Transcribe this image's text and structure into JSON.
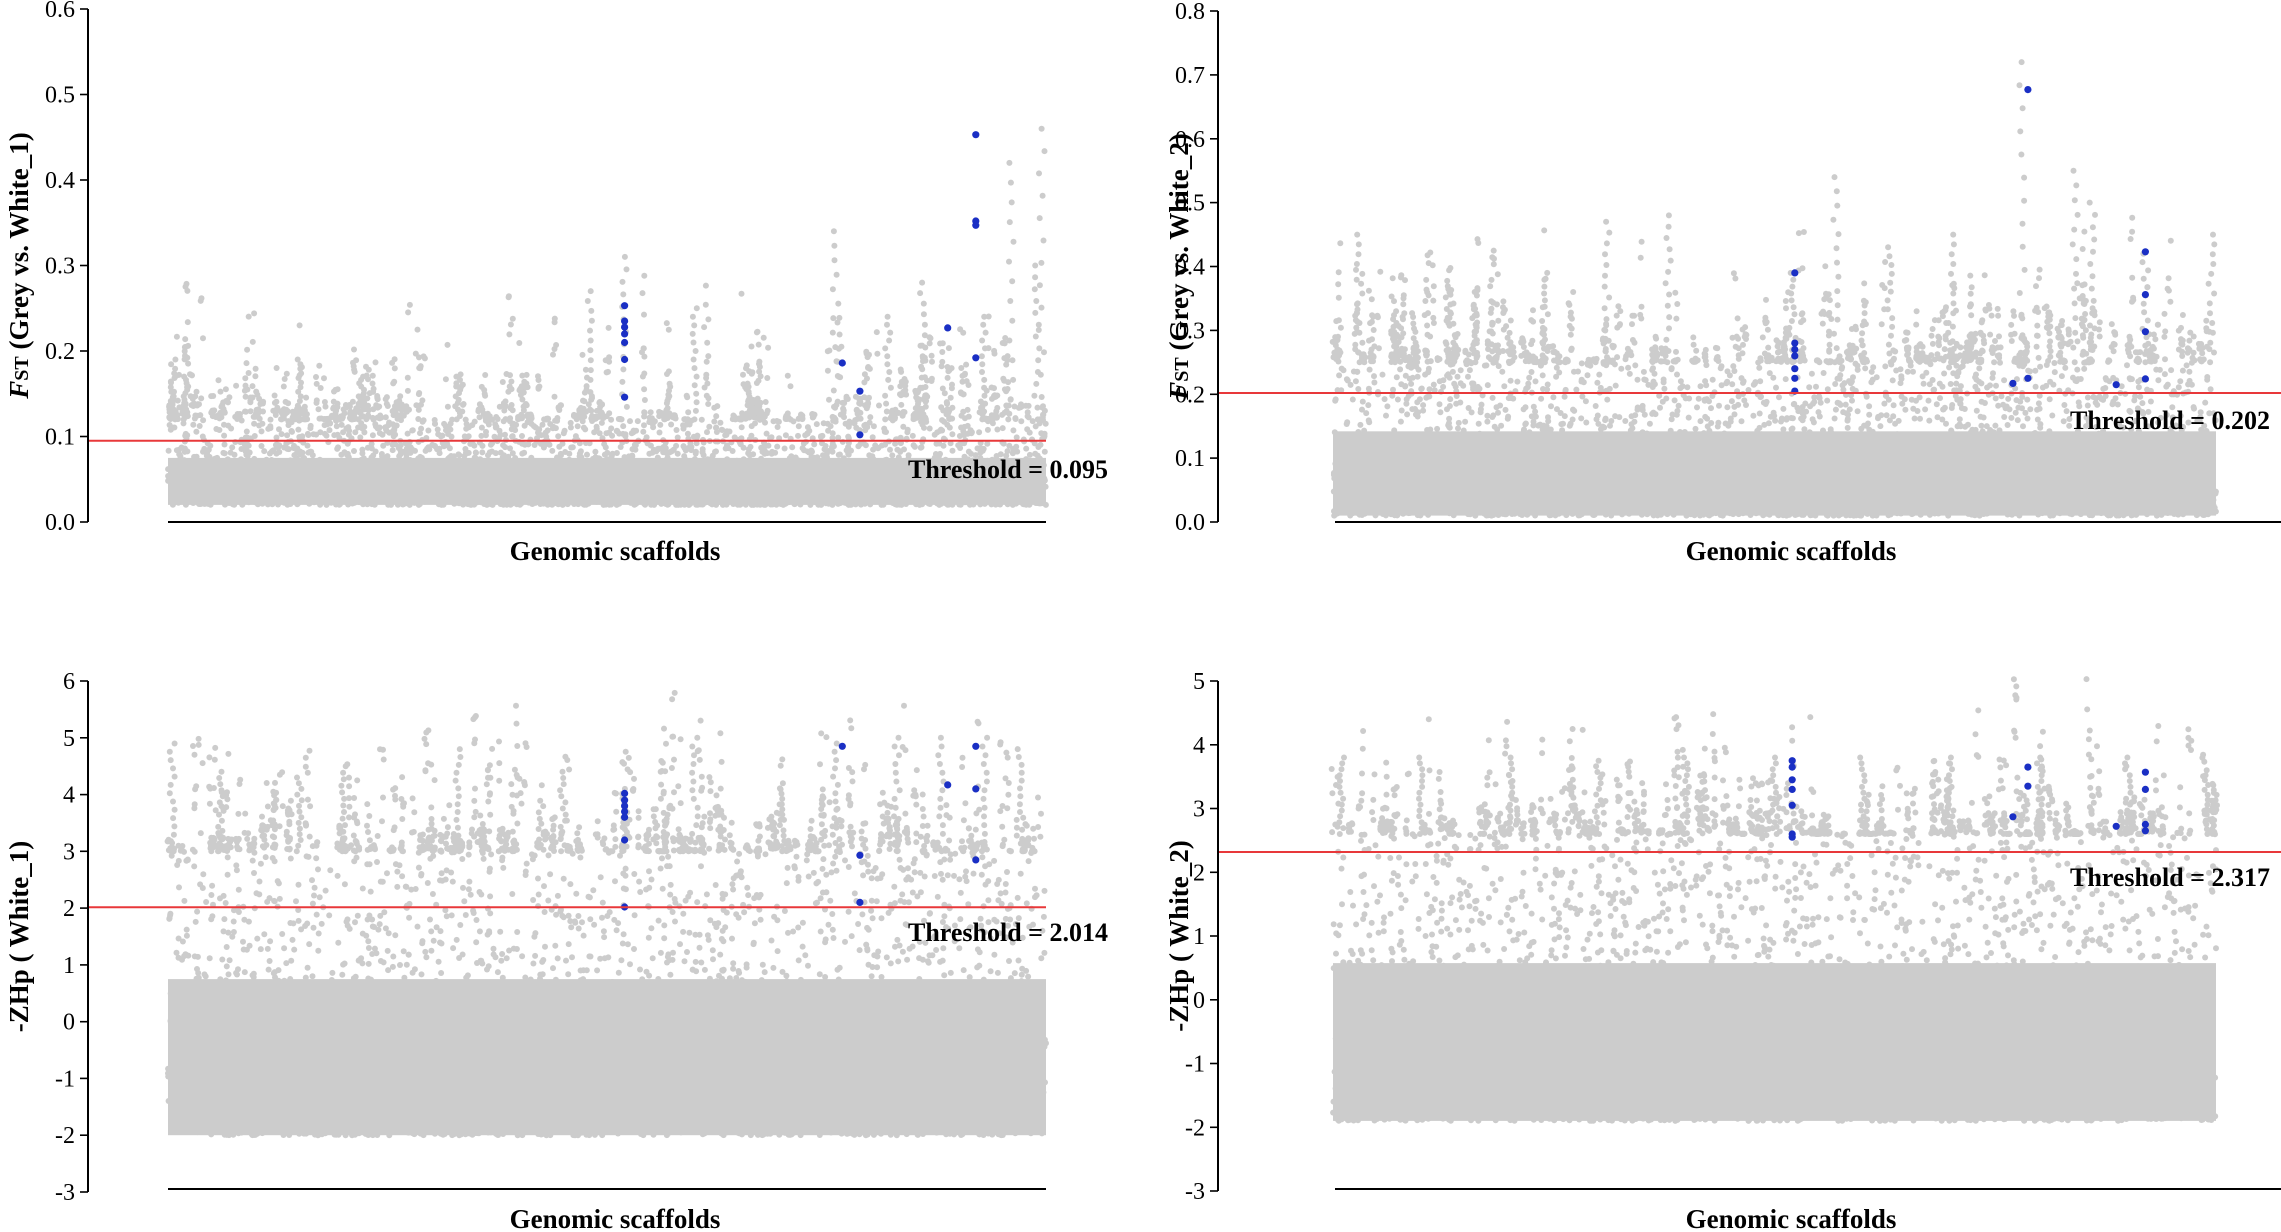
{
  "colors": {
    "background_points": "#cccccc",
    "significant_points": "#1a2fc4",
    "threshold_line": "#e8383a",
    "axis": "#000000"
  },
  "chart_data": [
    {
      "id": "fst-white1",
      "type": "scatter",
      "subtype": "manhattan",
      "ylabel_prefix": "F",
      "ylabel_sub": "ST",
      "ylabel_rest": " (Grey vs. White_1)",
      "xlabel": "Genomic scaffolds",
      "ylim": [
        0.0,
        0.6
      ],
      "yticks": [
        0.0,
        0.1,
        0.2,
        0.3,
        0.4,
        0.5,
        0.6
      ],
      "ytick_labels": [
        "0.0",
        "0.1",
        "0.2",
        "0.3",
        "0.4",
        "0.5",
        "0.6"
      ],
      "threshold": 0.095,
      "threshold_label": "Threshold = 0.095",
      "background_band": [
        0.02,
        0.12
      ],
      "peaks": [
        {
          "x": 0.005,
          "y": 0.19
        },
        {
          "x": 0.02,
          "y": 0.17
        },
        {
          "x": 0.15,
          "y": 0.19
        },
        {
          "x": 0.22,
          "y": 0.17
        },
        {
          "x": 0.33,
          "y": 0.17
        },
        {
          "x": 0.48,
          "y": 0.27
        },
        {
          "x": 0.52,
          "y": 0.31
        },
        {
          "x": 0.6,
          "y": 0.25
        },
        {
          "x": 0.76,
          "y": 0.34
        },
        {
          "x": 0.82,
          "y": 0.24
        },
        {
          "x": 0.86,
          "y": 0.28
        },
        {
          "x": 0.93,
          "y": 0.24
        },
        {
          "x": 0.96,
          "y": 0.42
        },
        {
          "x": 0.995,
          "y": 0.46
        },
        {
          "x": 0.99,
          "y": 0.3
        }
      ],
      "significant": [
        {
          "x": 0.52,
          "y": 0.253
        },
        {
          "x": 0.52,
          "y": 0.235
        },
        {
          "x": 0.52,
          "y": 0.228
        },
        {
          "x": 0.52,
          "y": 0.22
        },
        {
          "x": 0.52,
          "y": 0.21
        },
        {
          "x": 0.52,
          "y": 0.19
        },
        {
          "x": 0.52,
          "y": 0.146
        },
        {
          "x": 0.768,
          "y": 0.186
        },
        {
          "x": 0.788,
          "y": 0.153
        },
        {
          "x": 0.788,
          "y": 0.102
        },
        {
          "x": 0.888,
          "y": 0.227
        },
        {
          "x": 0.92,
          "y": 0.453
        },
        {
          "x": 0.92,
          "y": 0.352
        },
        {
          "x": 0.92,
          "y": 0.347
        },
        {
          "x": 0.92,
          "y": 0.192
        }
      ]
    },
    {
      "id": "fst-white2",
      "type": "scatter",
      "subtype": "manhattan",
      "ylabel_prefix": "F",
      "ylabel_sub": "ST",
      "ylabel_rest": " (Grey vs. White_2)",
      "xlabel": "Genomic scaffolds",
      "ylim": [
        0.0,
        0.8
      ],
      "yticks": [
        0.0,
        0.1,
        0.2,
        0.3,
        0.4,
        0.5,
        0.6,
        0.7,
        0.8
      ],
      "ytick_labels": [
        "0.0",
        "0.1",
        "0.2",
        "0.3",
        "0.4",
        "0.5",
        "0.6",
        "0.7",
        "0.8"
      ],
      "threshold": 0.202,
      "threshold_label": "Threshold = 0.202",
      "background_band": [
        0.01,
        0.25
      ],
      "peaks": [
        {
          "x": 0.03,
          "y": 0.45
        },
        {
          "x": 0.07,
          "y": 0.33
        },
        {
          "x": 0.16,
          "y": 0.34
        },
        {
          "x": 0.24,
          "y": 0.39
        },
        {
          "x": 0.31,
          "y": 0.47
        },
        {
          "x": 0.38,
          "y": 0.48
        },
        {
          "x": 0.52,
          "y": 0.39
        },
        {
          "x": 0.57,
          "y": 0.54
        },
        {
          "x": 0.63,
          "y": 0.43
        },
        {
          "x": 0.7,
          "y": 0.45
        },
        {
          "x": 0.78,
          "y": 0.72
        },
        {
          "x": 0.84,
          "y": 0.55
        },
        {
          "x": 0.86,
          "y": 0.5
        },
        {
          "x": 0.92,
          "y": 0.42
        },
        {
          "x": 0.995,
          "y": 0.45
        }
      ],
      "significant": [
        {
          "x": 0.523,
          "y": 0.39
        },
        {
          "x": 0.523,
          "y": 0.28
        },
        {
          "x": 0.523,
          "y": 0.27
        },
        {
          "x": 0.523,
          "y": 0.26
        },
        {
          "x": 0.523,
          "y": 0.24
        },
        {
          "x": 0.523,
          "y": 0.225
        },
        {
          "x": 0.523,
          "y": 0.205
        },
        {
          "x": 0.77,
          "y": 0.217
        },
        {
          "x": 0.787,
          "y": 0.677
        },
        {
          "x": 0.787,
          "y": 0.225
        },
        {
          "x": 0.887,
          "y": 0.215
        },
        {
          "x": 0.92,
          "y": 0.423
        },
        {
          "x": 0.92,
          "y": 0.356
        },
        {
          "x": 0.92,
          "y": 0.298
        },
        {
          "x": 0.92,
          "y": 0.224
        }
      ]
    },
    {
      "id": "zhp-white1",
      "type": "scatter",
      "subtype": "manhattan",
      "ylabel_prefix": "-ZHp ( White_1)",
      "ylabel_sub": "",
      "ylabel_rest": "",
      "xlabel": "Genomic scaffolds",
      "ylim": [
        -3,
        6
      ],
      "yticks": [
        -3,
        -2,
        -1,
        0,
        1,
        2,
        3,
        4,
        5,
        6
      ],
      "ytick_labels": [
        "-3",
        "-2",
        "-1",
        "0",
        "1",
        "2",
        "3",
        "4",
        "5",
        "6"
      ],
      "threshold": 2.014,
      "threshold_label": "Threshold = 2.014",
      "background_band": [
        -2.0,
        3.0
      ],
      "peaks": [
        {
          "x": 0.005,
          "y": 4.9
        },
        {
          "x": 0.06,
          "y": 4.4
        },
        {
          "x": 0.15,
          "y": 4.3
        },
        {
          "x": 0.2,
          "y": 4.5
        },
        {
          "x": 0.33,
          "y": 4.8
        },
        {
          "x": 0.45,
          "y": 4.4
        },
        {
          "x": 0.52,
          "y": 4.1
        },
        {
          "x": 0.6,
          "y": 5.0
        },
        {
          "x": 0.7,
          "y": 4.2
        },
        {
          "x": 0.76,
          "y": 4.9
        },
        {
          "x": 0.83,
          "y": 5.0
        },
        {
          "x": 0.88,
          "y": 5.0
        },
        {
          "x": 0.93,
          "y": 5.0
        },
        {
          "x": 0.97,
          "y": 4.8
        }
      ],
      "significant": [
        {
          "x": 0.52,
          "y": 4.02
        },
        {
          "x": 0.52,
          "y": 3.9
        },
        {
          "x": 0.52,
          "y": 3.8
        },
        {
          "x": 0.52,
          "y": 3.7
        },
        {
          "x": 0.52,
          "y": 3.6
        },
        {
          "x": 0.52,
          "y": 3.2
        },
        {
          "x": 0.52,
          "y": 2.02
        },
        {
          "x": 0.768,
          "y": 4.85
        },
        {
          "x": 0.788,
          "y": 2.93
        },
        {
          "x": 0.788,
          "y": 2.1
        },
        {
          "x": 0.888,
          "y": 4.17
        },
        {
          "x": 0.92,
          "y": 4.85
        },
        {
          "x": 0.92,
          "y": 4.1
        },
        {
          "x": 0.92,
          "y": 2.85
        }
      ]
    },
    {
      "id": "zhp-white2",
      "type": "scatter",
      "subtype": "manhattan",
      "ylabel_prefix": "-ZHp ( White_2)",
      "ylabel_sub": "",
      "ylabel_rest": "",
      "xlabel": "Genomic scaffolds",
      "ylim": [
        -3,
        5
      ],
      "yticks": [
        -3,
        -2,
        -1,
        0,
        1,
        2,
        3,
        4,
        5
      ],
      "ytick_labels": [
        "-3",
        "-2",
        "-1",
        "0",
        "1",
        "2",
        "3",
        "4",
        "5"
      ],
      "threshold": 2.317,
      "threshold_label": "Threshold = 2.317",
      "background_band": [
        -1.9,
        2.6
      ],
      "peaks": [
        {
          "x": 0.01,
          "y": 3.8
        },
        {
          "x": 0.1,
          "y": 3.8
        },
        {
          "x": 0.2,
          "y": 3.8
        },
        {
          "x": 0.3,
          "y": 3.75
        },
        {
          "x": 0.4,
          "y": 3.8
        },
        {
          "x": 0.5,
          "y": 3.8
        },
        {
          "x": 0.6,
          "y": 3.8
        },
        {
          "x": 0.7,
          "y": 3.8
        },
        {
          "x": 0.8,
          "y": 3.8
        },
        {
          "x": 0.9,
          "y": 3.8
        },
        {
          "x": 0.99,
          "y": 3.6
        }
      ],
      "significant": [
        {
          "x": 0.52,
          "y": 3.75
        },
        {
          "x": 0.52,
          "y": 3.65
        },
        {
          "x": 0.52,
          "y": 3.45
        },
        {
          "x": 0.52,
          "y": 3.3
        },
        {
          "x": 0.52,
          "y": 3.05
        },
        {
          "x": 0.52,
          "y": 2.6
        },
        {
          "x": 0.52,
          "y": 2.55
        },
        {
          "x": 0.77,
          "y": 2.87
        },
        {
          "x": 0.787,
          "y": 3.65
        },
        {
          "x": 0.787,
          "y": 3.35
        },
        {
          "x": 0.887,
          "y": 2.72
        },
        {
          "x": 0.92,
          "y": 3.57
        },
        {
          "x": 0.92,
          "y": 3.3
        },
        {
          "x": 0.92,
          "y": 2.75
        },
        {
          "x": 0.92,
          "y": 2.65
        }
      ]
    }
  ]
}
